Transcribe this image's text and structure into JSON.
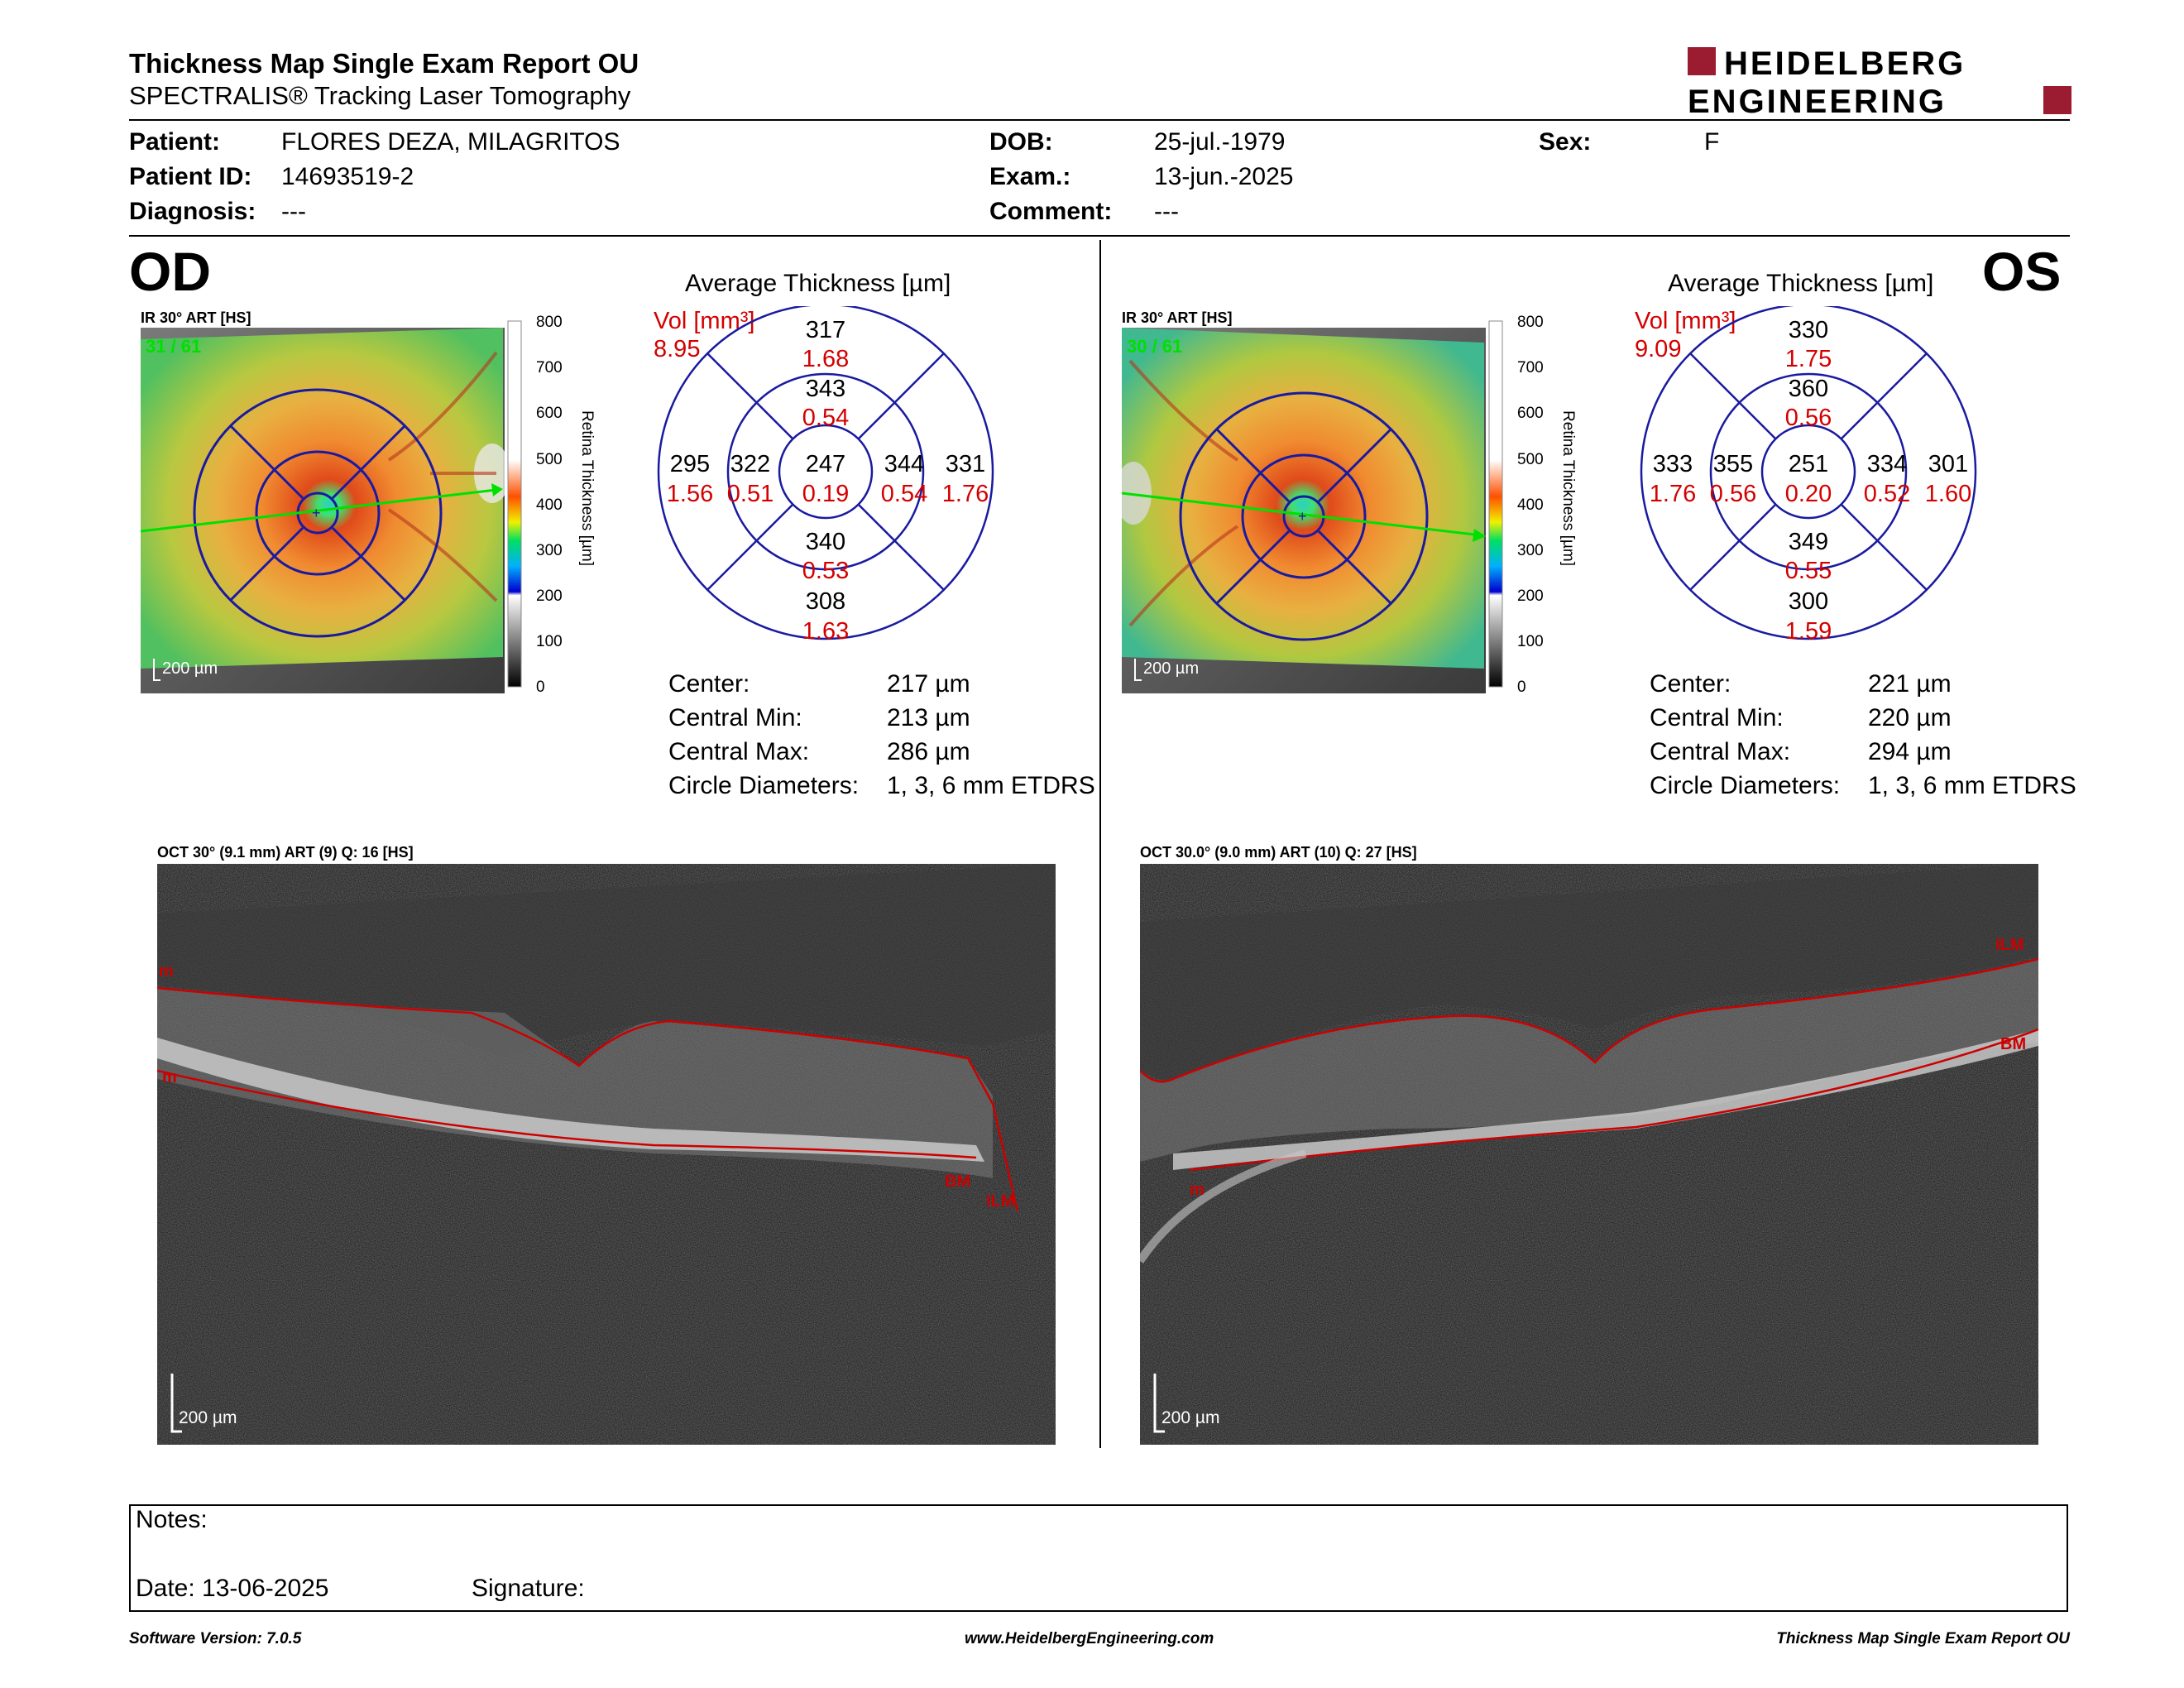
{
  "report": {
    "title": "Thickness Map Single Exam Report OU",
    "subtitle": "SPECTRALIS® Tracking Laser Tomography",
    "brand_line1": "HEIDELBERG",
    "brand_line2": "ENGINEERING"
  },
  "patient": {
    "patient_label": "Patient:",
    "patient_value": "FLORES DEZA, MILAGRITOS",
    "id_label": "Patient ID:",
    "id_value": "14693519-2",
    "diagnosis_label": "Diagnosis:",
    "diagnosis_value": "---",
    "dob_label": "DOB:",
    "dob_value": "25-jul.-1979",
    "exam_label": "Exam.:",
    "exam_value": "13-jun.-2025",
    "comment_label": "Comment:",
    "comment_value": "---",
    "sex_label": "Sex:",
    "sex_value": "F"
  },
  "colorbar": {
    "ticks": [
      "800",
      "700",
      "600",
      "500",
      "400",
      "300",
      "200",
      "100",
      "0"
    ],
    "axis_label": "Retina Thickness [µm]"
  },
  "od": {
    "eye": "OD",
    "ir_label": "IR 30° ART [HS]",
    "frames": "31 / 61",
    "ir_scale": "200 µm",
    "avg_title": "Average Thickness [µm]",
    "vol_label": "Vol [mm³]",
    "vol_total": "8.95",
    "grid": {
      "center_t": "247",
      "center_v": "0.19",
      "inner_sup_t": "343",
      "inner_sup_v": "0.54",
      "inner_inf_t": "340",
      "inner_inf_v": "0.53",
      "inner_left_t": "322",
      "inner_left_v": "0.51",
      "inner_right_t": "344",
      "inner_right_v": "0.54",
      "outer_sup_t": "317",
      "outer_sup_v": "1.68",
      "outer_inf_t": "308",
      "outer_inf_v": "1.63",
      "outer_left_t": "295",
      "outer_left_v": "1.56",
      "outer_right_t": "331",
      "outer_right_v": "1.76"
    },
    "stats": {
      "center_label": "Center:",
      "center_value": "217 µm",
      "min_label": "Central Min:",
      "min_value": "213 µm",
      "max_label": "Central Max:",
      "max_value": "286 µm",
      "diam_label": "Circle Diameters:",
      "diam_value": "1, 3, 6 mm ETDRS"
    },
    "oct_label": "OCT 30° (9.1 mm) ART (9) Q: 16 [HS]",
    "oct_scale": "200 µm",
    "layers": [
      "m",
      "m",
      "BM",
      "ILM"
    ]
  },
  "os": {
    "eye": "OS",
    "ir_label": "IR 30° ART [HS]",
    "frames": "30 / 61",
    "ir_scale": "200 µm",
    "avg_title": "Average Thickness [µm]",
    "vol_label": "Vol [mm³]",
    "vol_total": "9.09",
    "grid": {
      "center_t": "251",
      "center_v": "0.20",
      "inner_sup_t": "360",
      "inner_sup_v": "0.56",
      "inner_inf_t": "349",
      "inner_inf_v": "0.55",
      "inner_left_t": "355",
      "inner_left_v": "0.56",
      "inner_right_t": "334",
      "inner_right_v": "0.52",
      "outer_sup_t": "330",
      "outer_sup_v": "1.75",
      "outer_inf_t": "300",
      "outer_inf_v": "1.59",
      "outer_left_t": "333",
      "outer_left_v": "1.76",
      "outer_right_t": "301",
      "outer_right_v": "1.60"
    },
    "stats": {
      "center_label": "Center:",
      "center_value": "221 µm",
      "min_label": "Central Min:",
      "min_value": "220 µm",
      "max_label": "Central Max:",
      "max_value": "294 µm",
      "diam_label": "Circle Diameters:",
      "diam_value": "1, 3, 6 mm ETDRS"
    },
    "oct_label": "OCT 30.0° (9.0 mm) ART (10) Q: 27 [HS]",
    "oct_scale": "200 µm",
    "layers": [
      "ILM",
      "BM",
      "m"
    ]
  },
  "notes": {
    "notes_label": "Notes:",
    "date_label": "Date: 13-06-2025",
    "signature_label": "Signature:"
  },
  "footer": {
    "software": "Software Version: 7.0.5",
    "website": "www.HeidelbergEngineering.com",
    "report_name": "Thickness Map Single Exam Report OU"
  },
  "colors": {
    "grid_blue": "#1a1aa0",
    "vol_red": "#d40000",
    "layer_red": "#cc0000",
    "logo_red": "#9b1b30",
    "frame_green": "#00e000"
  }
}
